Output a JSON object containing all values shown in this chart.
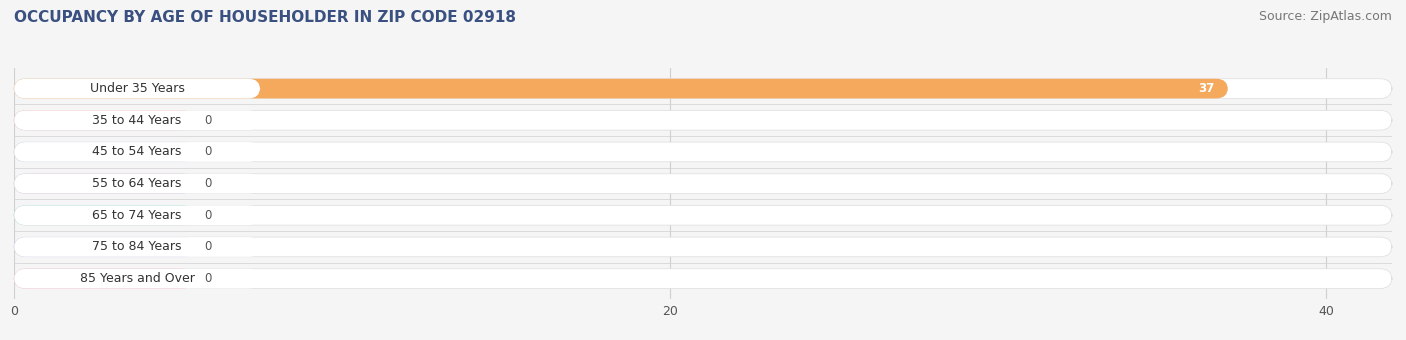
{
  "title": "OCCUPANCY BY AGE OF HOUSEHOLDER IN ZIP CODE 02918",
  "source": "Source: ZipAtlas.com",
  "categories": [
    "Under 35 Years",
    "35 to 44 Years",
    "45 to 54 Years",
    "55 to 64 Years",
    "65 to 74 Years",
    "75 to 84 Years",
    "85 Years and Over"
  ],
  "values": [
    37,
    0,
    0,
    0,
    0,
    0,
    0
  ],
  "bar_colors": [
    "#F5A95D",
    "#F4A0A0",
    "#A8C4E0",
    "#C8A8D8",
    "#7ECEC8",
    "#B0B8E8",
    "#F4A0B8"
  ],
  "xlim_max": 42,
  "xticks": [
    0,
    20,
    40
  ],
  "title_fontsize": 11,
  "source_fontsize": 9,
  "label_fontsize": 9,
  "value_fontsize": 8.5,
  "bar_height": 0.62,
  "background_color": "#f5f5f5",
  "grid_color": "#d0d0d0",
  "title_color": "#3a5080",
  "source_color": "#777777"
}
